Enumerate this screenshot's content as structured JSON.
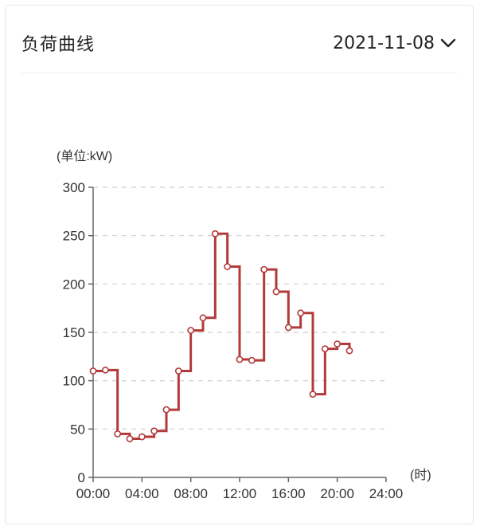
{
  "header": {
    "title": "负荷曲线",
    "date": "2021-11-08",
    "chevron_icon": "chevron-down-icon"
  },
  "chart_data": {
    "type": "line",
    "step": true,
    "unit_label": "(单位:kW)",
    "x_unit_label": "(时)",
    "x_ticks": [
      "00:00",
      "04:00",
      "08:00",
      "12:00",
      "16:00",
      "20:00",
      "24:00"
    ],
    "x_range": [
      0,
      24
    ],
    "ylim": [
      0,
      300
    ],
    "y_ticks": [
      0,
      50,
      100,
      150,
      200,
      250,
      300
    ],
    "grid": "horizontal-dashed",
    "line_color": "#b23a3a",
    "x": [
      0,
      1,
      2,
      3,
      4,
      5,
      6,
      7,
      8,
      9,
      10,
      11,
      12,
      13,
      14,
      15,
      16,
      17,
      18,
      19,
      20,
      21
    ],
    "values": [
      110,
      111,
      45,
      40,
      42,
      48,
      70,
      110,
      152,
      165,
      252,
      218,
      122,
      121,
      215,
      192,
      155,
      170,
      86,
      133,
      138,
      131
    ]
  }
}
